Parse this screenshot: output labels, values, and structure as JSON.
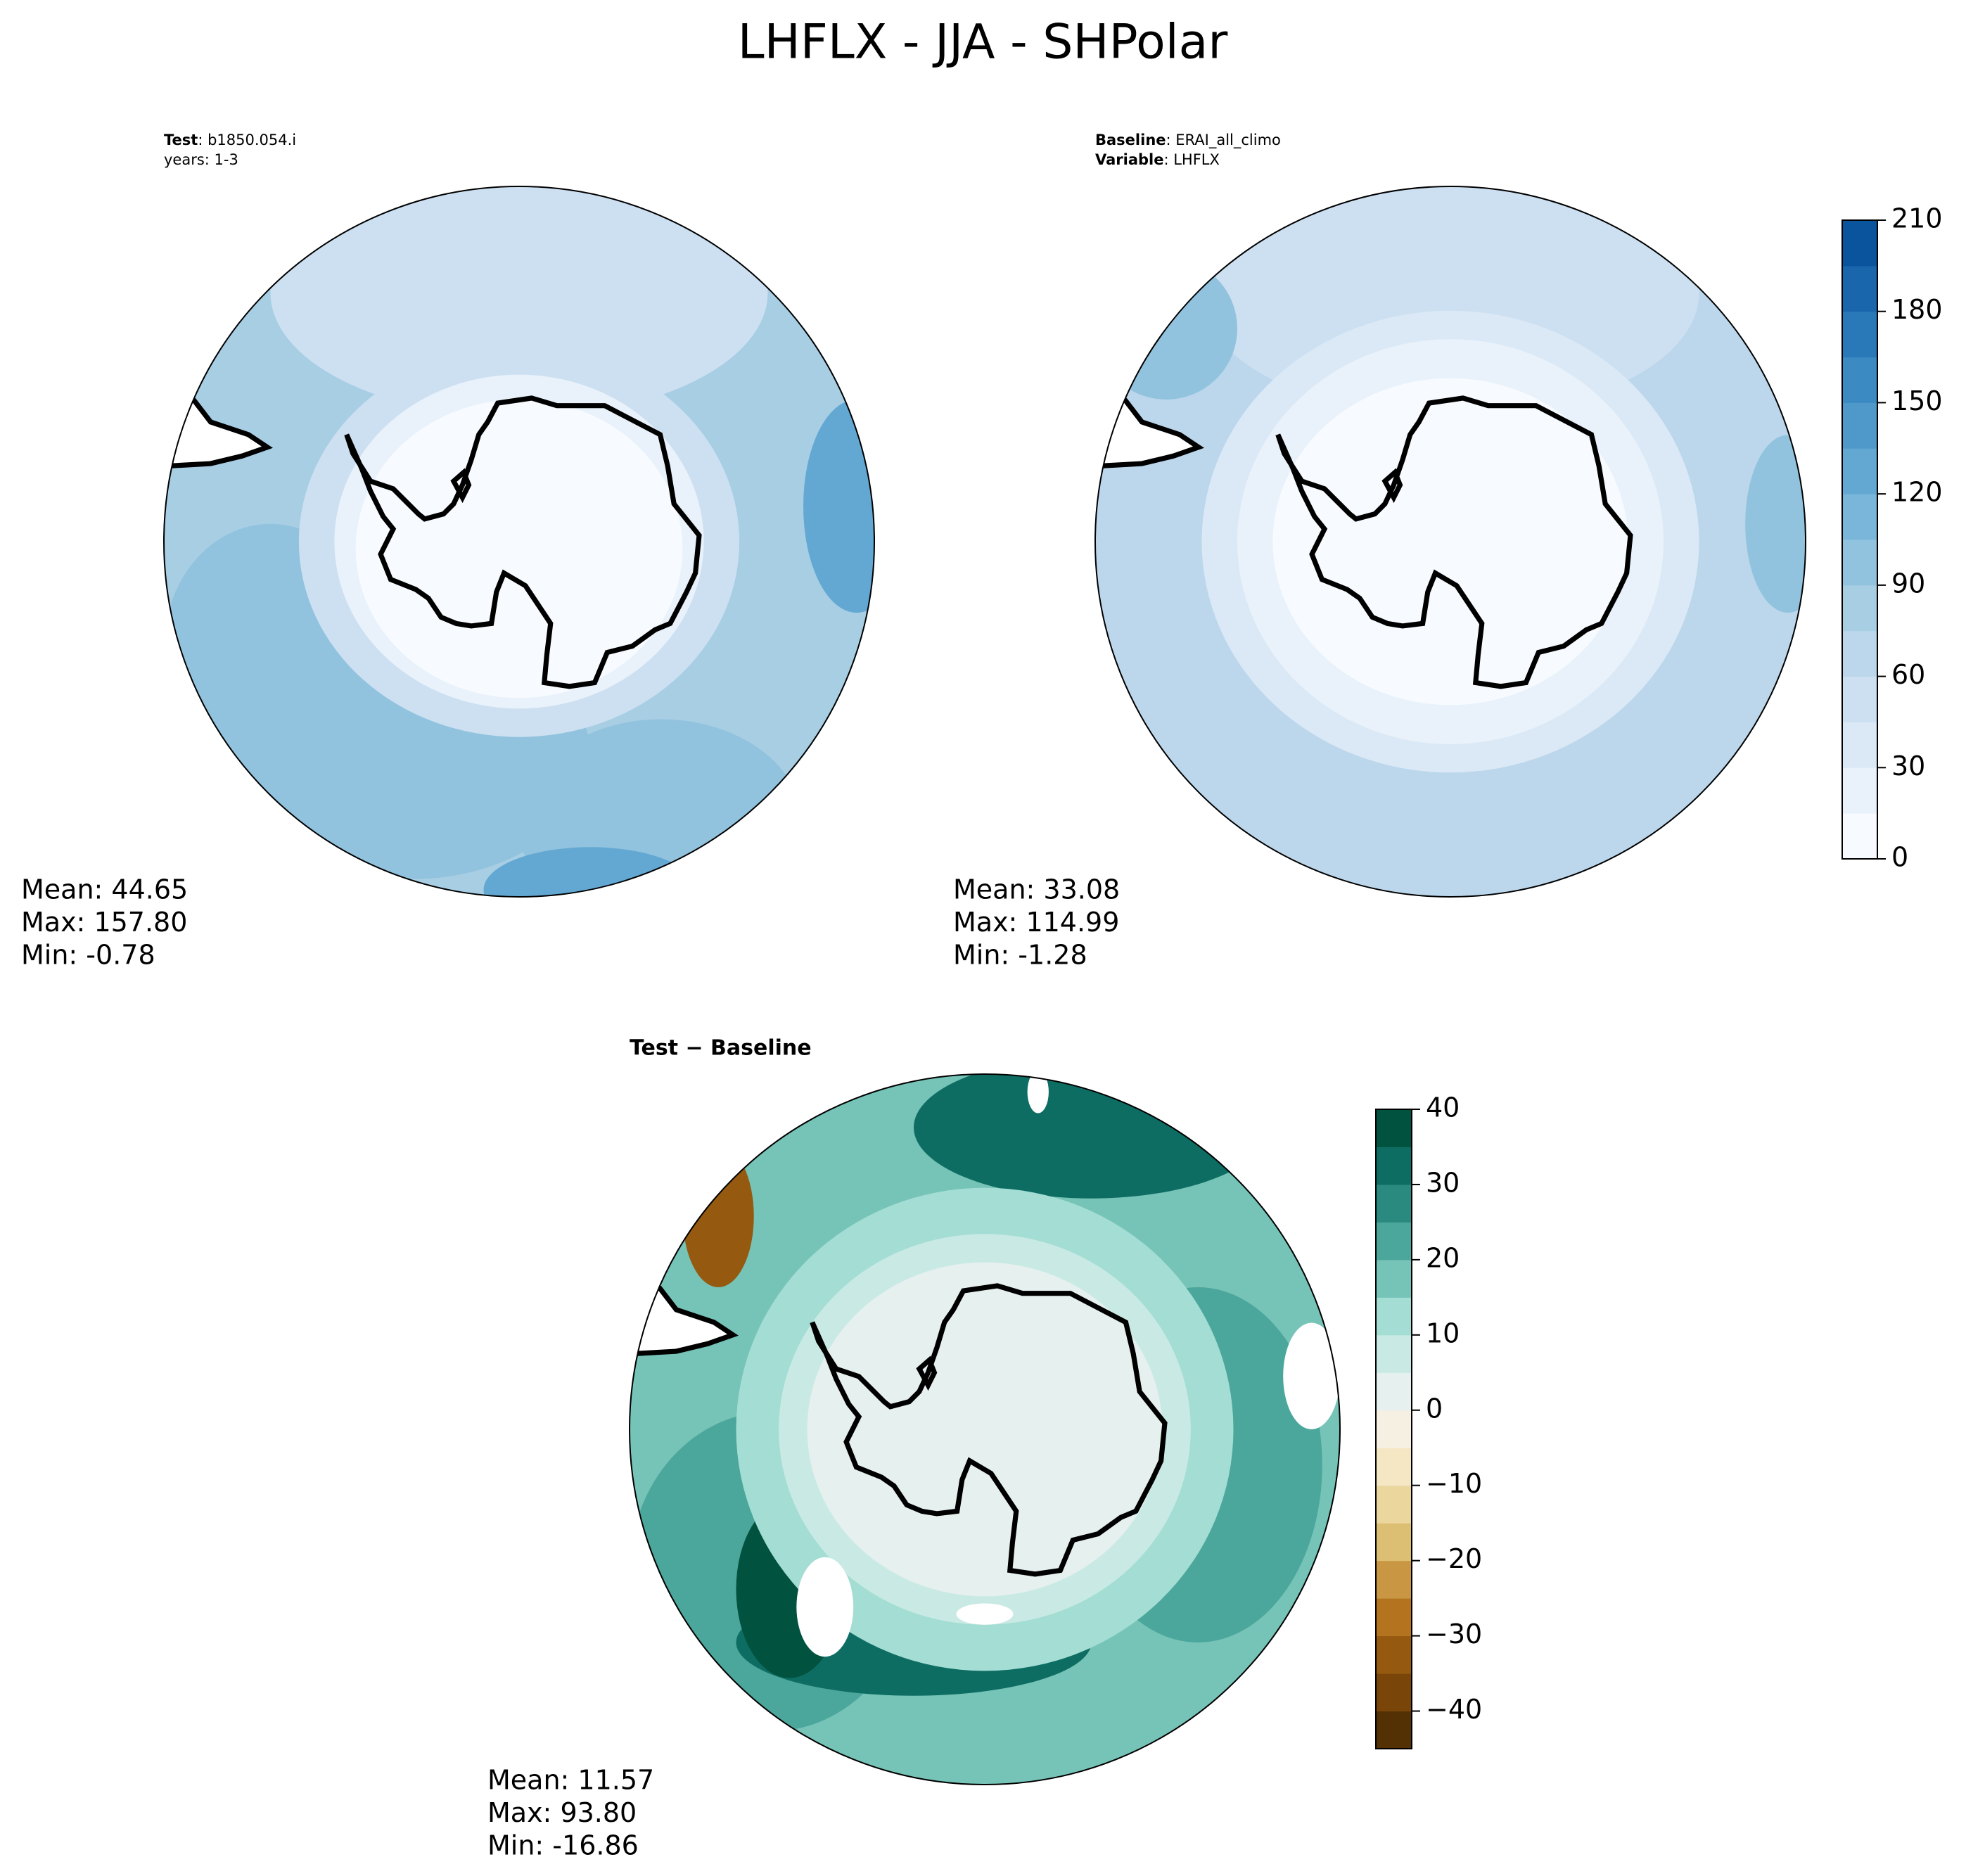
{
  "title": "LHFLX - JJA - SHPolar",
  "chart_data": [
    {
      "type": "contour-map",
      "label_lines": [
        [
          "Test",
          ": b1850.054.i"
        ],
        [
          "years: 1-3"
        ]
      ],
      "stats": [
        "Mean: 44.65",
        "Max: 157.80",
        "Min: -0.78"
      ]
    },
    {
      "type": "contour-map",
      "label_lines": [
        [
          "Baseline",
          ": ERAI_all_climo"
        ],
        [
          "Variable",
          ": LHFLX"
        ]
      ],
      "stats": [
        "Mean: 33.08",
        "Max: 114.99",
        "Min: -1.28"
      ],
      "colorbar": {
        "lim": [
          0,
          210
        ],
        "ticks": [
          0,
          30,
          60,
          90,
          120,
          150,
          180,
          210
        ],
        "colors": [
          "#f7fbff",
          "#e9f2fb",
          "#dbe9f6",
          "#cde0f1",
          "#bcd7ec",
          "#a8cee4",
          "#92c3de",
          "#7ab6d9",
          "#63a8d3",
          "#4f99ca",
          "#3b8ac2",
          "#2978b8",
          "#1966ad",
          "#0a549e"
        ]
      }
    },
    {
      "type": "contour-map",
      "title": "Test − Baseline",
      "stats": [
        "Mean: 11.57",
        "Max: 93.80",
        "Min: -16.86"
      ],
      "colorbar": {
        "lim": [
          -45,
          40
        ],
        "ticks": [
          {
            "value": -40,
            "label": "−40"
          },
          {
            "value": -30,
            "label": "−30"
          },
          {
            "value": -20,
            "label": "−20"
          },
          {
            "value": -10,
            "label": "−10"
          },
          0,
          10,
          20,
          30,
          40
        ],
        "colors": [
          "#543005",
          "#7a4508",
          "#955a10",
          "#b3731f",
          "#c99743",
          "#dcbf73",
          "#ebd79e",
          "#f5e7c3",
          "#f6f0e2",
          "#e6f0ee",
          "#c9eae4",
          "#a3ddd3",
          "#76c3b7",
          "#4ba69b",
          "#2a8a80",
          "#0e6d63",
          "#01523f"
        ]
      }
    }
  ]
}
